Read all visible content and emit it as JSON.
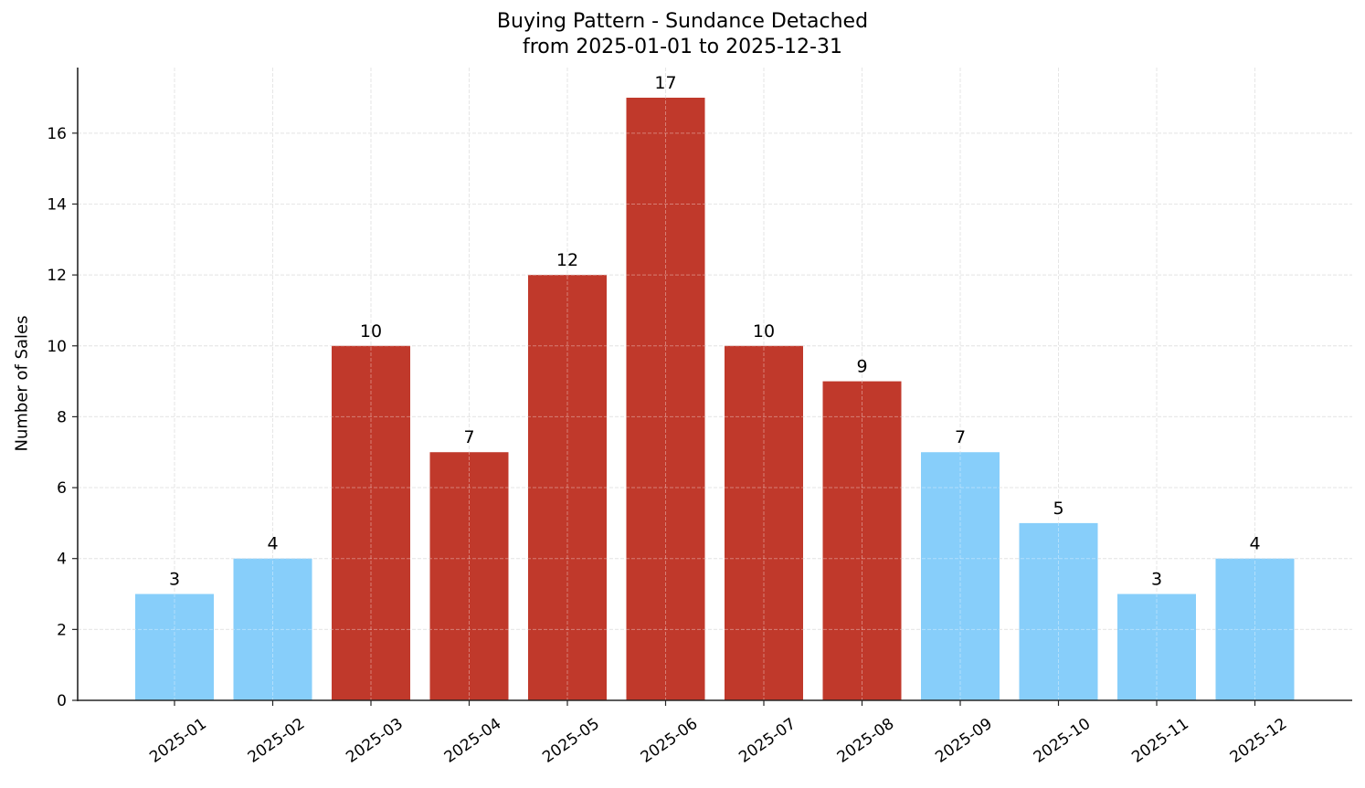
{
  "chart_data": {
    "type": "bar",
    "title": "Buying Pattern - Sundance Detached",
    "subtitle": "from 2025-01-01 to 2025-12-31",
    "xlabel": "",
    "ylabel": "Number of Sales",
    "categories": [
      "2025-01",
      "2025-02",
      "2025-03",
      "2025-04",
      "2025-05",
      "2025-06",
      "2025-07",
      "2025-08",
      "2025-09",
      "2025-10",
      "2025-11",
      "2025-12"
    ],
    "values": [
      3,
      4,
      10,
      7,
      12,
      17,
      10,
      9,
      7,
      5,
      3,
      4
    ],
    "bar_colors": [
      "#87cefa",
      "#87cefa",
      "#c0392b",
      "#c0392b",
      "#c0392b",
      "#c0392b",
      "#c0392b",
      "#c0392b",
      "#87cefa",
      "#87cefa",
      "#87cefa",
      "#87cefa"
    ],
    "highlight_color": "#c0392b",
    "base_color": "#87cefa",
    "yticks": [
      0,
      2,
      4,
      6,
      8,
      10,
      12,
      14,
      16
    ],
    "ylim": [
      0,
      17.85
    ],
    "grid": true,
    "legend": null,
    "data_labels": true
  }
}
